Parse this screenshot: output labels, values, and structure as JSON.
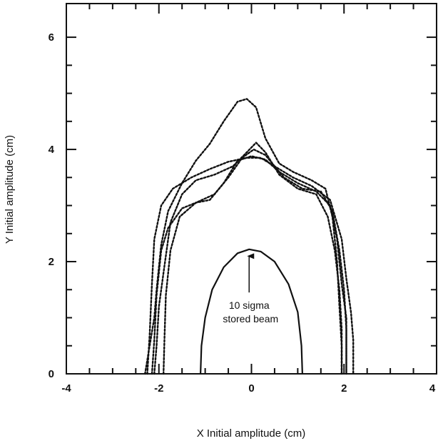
{
  "chart_data": {
    "type": "line",
    "xlabel": "X Initial amplitude (cm)",
    "ylabel": "Y Initial amplitude (cm)",
    "xlim": [
      -4,
      4
    ],
    "ylim": [
      0,
      6.6
    ],
    "x_ticks": [
      -4,
      -2,
      0,
      2,
      4
    ],
    "y_ticks": [
      0,
      2,
      4,
      6
    ],
    "x_tick_labels": [
      "-4",
      "-2",
      "0",
      "2",
      "4"
    ],
    "y_tick_labels": [
      "0",
      "2",
      "4",
      "6"
    ],
    "grid": false,
    "legend": "none",
    "annotation": {
      "line1": "10 sigma",
      "line2": "stored beam",
      "arrow_from": [
        -0.05,
        1.45
      ],
      "arrow_to": [
        -0.05,
        2.2
      ]
    },
    "series": [
      {
        "style": "solid",
        "points": [
          [
            -1.1,
            0
          ],
          [
            -1.08,
            0.5
          ],
          [
            -1.0,
            1.0
          ],
          [
            -0.85,
            1.5
          ],
          [
            -0.6,
            1.9
          ],
          [
            -0.3,
            2.15
          ],
          [
            -0.05,
            2.22
          ],
          [
            0.2,
            2.18
          ],
          [
            0.5,
            2.0
          ],
          [
            0.8,
            1.6
          ],
          [
            1.0,
            1.1
          ],
          [
            1.08,
            0.5
          ],
          [
            1.1,
            0
          ]
        ]
      },
      {
        "style": "dotted",
        "points": [
          [
            -2.3,
            0
          ],
          [
            -2.2,
            0.5
          ],
          [
            -2.1,
            1.0
          ],
          [
            -2.05,
            1.5
          ],
          [
            -1.95,
            2.3
          ],
          [
            -1.8,
            2.9
          ],
          [
            -1.5,
            3.4
          ],
          [
            -1.2,
            3.8
          ],
          [
            -0.9,
            4.1
          ],
          [
            -0.6,
            4.5
          ],
          [
            -0.3,
            4.85
          ],
          [
            -0.1,
            4.9
          ],
          [
            0.1,
            4.75
          ],
          [
            0.3,
            4.2
          ],
          [
            0.6,
            3.75
          ],
          [
            0.9,
            3.6
          ],
          [
            1.3,
            3.45
          ],
          [
            1.6,
            3.3
          ],
          [
            1.75,
            2.8
          ],
          [
            1.85,
            2.0
          ],
          [
            1.9,
            1.2
          ],
          [
            1.95,
            0.5
          ],
          [
            1.95,
            0
          ]
        ]
      },
      {
        "style": "dotted",
        "points": [
          [
            -2.1,
            0
          ],
          [
            -2.05,
            0.5
          ],
          [
            -2.0,
            1.2
          ],
          [
            -1.9,
            1.8
          ],
          [
            -1.75,
            2.7
          ],
          [
            -1.5,
            3.2
          ],
          [
            -1.2,
            3.45
          ],
          [
            -0.8,
            3.55
          ],
          [
            -0.4,
            3.7
          ],
          [
            -0.1,
            3.95
          ],
          [
            0.1,
            4.12
          ],
          [
            0.3,
            3.95
          ],
          [
            0.6,
            3.55
          ],
          [
            1.0,
            3.3
          ],
          [
            1.4,
            3.2
          ],
          [
            1.65,
            2.8
          ],
          [
            1.8,
            2.2
          ],
          [
            1.9,
            1.5
          ],
          [
            1.95,
            0.8
          ],
          [
            1.95,
            0
          ]
        ]
      },
      {
        "style": "dotted",
        "points": [
          [
            -1.9,
            0
          ],
          [
            -1.88,
            0.6
          ],
          [
            -1.85,
            1.4
          ],
          [
            -1.75,
            2.2
          ],
          [
            -1.55,
            2.8
          ],
          [
            -1.2,
            3.05
          ],
          [
            -0.8,
            3.2
          ],
          [
            -0.5,
            3.5
          ],
          [
            -0.2,
            3.85
          ],
          [
            0.05,
            4.0
          ],
          [
            0.3,
            3.9
          ],
          [
            0.7,
            3.5
          ],
          [
            1.1,
            3.3
          ],
          [
            1.5,
            3.25
          ],
          [
            1.75,
            2.9
          ],
          [
            1.9,
            2.2
          ],
          [
            2.0,
            1.5
          ],
          [
            2.05,
            0.8
          ],
          [
            2.05,
            0
          ]
        ]
      },
      {
        "style": "dotted",
        "points": [
          [
            -2.15,
            0
          ],
          [
            -2.1,
            0.6
          ],
          [
            -2.05,
            1.4
          ],
          [
            -1.95,
            2.2
          ],
          [
            -1.8,
            2.6
          ],
          [
            -1.5,
            2.95
          ],
          [
            -1.2,
            3.05
          ],
          [
            -0.9,
            3.1
          ],
          [
            -0.6,
            3.4
          ],
          [
            -0.3,
            3.8
          ],
          [
            0.0,
            3.88
          ],
          [
            0.3,
            3.82
          ],
          [
            0.6,
            3.6
          ],
          [
            1.0,
            3.4
          ],
          [
            1.4,
            3.25
          ],
          [
            1.7,
            3.0
          ],
          [
            1.85,
            2.4
          ],
          [
            1.95,
            1.6
          ],
          [
            2.05,
            1.0
          ],
          [
            2.05,
            0
          ]
        ]
      },
      {
        "style": "dotted",
        "points": [
          [
            -2.25,
            0
          ],
          [
            -2.2,
            0.7
          ],
          [
            -2.15,
            1.6
          ],
          [
            -2.1,
            2.4
          ],
          [
            -1.95,
            3.0
          ],
          [
            -1.7,
            3.3
          ],
          [
            -1.3,
            3.5
          ],
          [
            -0.9,
            3.65
          ],
          [
            -0.5,
            3.78
          ],
          [
            -0.1,
            3.85
          ],
          [
            0.2,
            3.85
          ],
          [
            0.5,
            3.7
          ],
          [
            0.9,
            3.5
          ],
          [
            1.3,
            3.35
          ],
          [
            1.7,
            3.1
          ],
          [
            1.95,
            2.4
          ],
          [
            2.05,
            1.7
          ],
          [
            2.15,
            1.1
          ],
          [
            2.2,
            0.6
          ],
          [
            2.2,
            0
          ]
        ]
      }
    ]
  }
}
